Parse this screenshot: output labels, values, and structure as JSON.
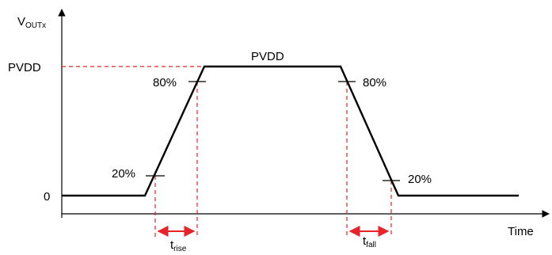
{
  "diagram": {
    "y_axis_label": {
      "main": "V",
      "sub": "OUTx"
    },
    "x_axis_label": "Time",
    "level_high": "PVDD",
    "level_zero": "0",
    "plateau_label": "PVDD",
    "rise_80_label": "80%",
    "rise_20_label": "20%",
    "fall_80_label": "80%",
    "fall_20_label": "20%",
    "t_rise": {
      "main": "t",
      "sub": "rise"
    },
    "t_fall": {
      "main": "t",
      "sub": "fall"
    }
  },
  "colors": {
    "waveform": "#000000",
    "guides": "#e8232a",
    "axes": "#000000"
  }
}
